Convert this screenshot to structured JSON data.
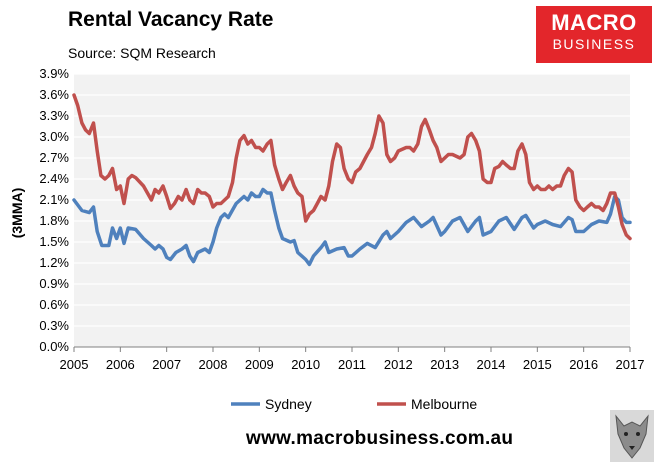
{
  "header": {
    "title": "Rental Vacancy Rate",
    "subtitle": "Source: SQM Research"
  },
  "logo": {
    "line1": "MACRO",
    "line2": "BUSINESS"
  },
  "footer": {
    "website": "www.macrobusiness.com.au"
  },
  "colors": {
    "plot_bg": "#f2f2f2",
    "sydney": "#4f81bd",
    "melbourne": "#c0504d",
    "logo_bg": "#e3262b"
  },
  "chart_data": {
    "type": "line",
    "title": "Rental Vacancy Rate",
    "subtitle": "Source: SQM Research",
    "ylabel": "(3MMA)",
    "ylim": [
      0,
      3.9
    ],
    "y_ticks": [
      "0.0%",
      "0.3%",
      "0.6%",
      "0.9%",
      "1.2%",
      "1.5%",
      "1.8%",
      "2.1%",
      "2.4%",
      "2.7%",
      "3.0%",
      "3.3%",
      "3.6%",
      "3.9%"
    ],
    "xlim": [
      2005,
      2017
    ],
    "x_ticks": [
      "2005",
      "2006",
      "2007",
      "2008",
      "2009",
      "2010",
      "2011",
      "2012",
      "2013",
      "2014",
      "2015",
      "2016",
      "2017"
    ],
    "grid": "horizontal",
    "legend": "bottom",
    "series": [
      {
        "name": "Sydney",
        "color": "#4f81bd",
        "points": [
          [
            2005.0,
            2.1
          ],
          [
            2005.17,
            1.95
          ],
          [
            2005.33,
            1.92
          ],
          [
            2005.42,
            2.0
          ],
          [
            2005.5,
            1.65
          ],
          [
            2005.6,
            1.45
          ],
          [
            2005.75,
            1.45
          ],
          [
            2005.83,
            1.7
          ],
          [
            2005.92,
            1.55
          ],
          [
            2006.0,
            1.7
          ],
          [
            2006.08,
            1.48
          ],
          [
            2006.17,
            1.7
          ],
          [
            2006.33,
            1.68
          ],
          [
            2006.5,
            1.55
          ],
          [
            2006.67,
            1.45
          ],
          [
            2006.75,
            1.4
          ],
          [
            2006.83,
            1.45
          ],
          [
            2006.92,
            1.4
          ],
          [
            2007.0,
            1.28
          ],
          [
            2007.08,
            1.25
          ],
          [
            2007.2,
            1.35
          ],
          [
            2007.33,
            1.4
          ],
          [
            2007.42,
            1.45
          ],
          [
            2007.5,
            1.3
          ],
          [
            2007.58,
            1.22
          ],
          [
            2007.67,
            1.35
          ],
          [
            2007.83,
            1.4
          ],
          [
            2007.92,
            1.35
          ],
          [
            2008.0,
            1.5
          ],
          [
            2008.08,
            1.7
          ],
          [
            2008.17,
            1.85
          ],
          [
            2008.25,
            1.9
          ],
          [
            2008.33,
            1.85
          ],
          [
            2008.5,
            2.05
          ],
          [
            2008.67,
            2.15
          ],
          [
            2008.75,
            2.1
          ],
          [
            2008.83,
            2.2
          ],
          [
            2008.92,
            2.15
          ],
          [
            2009.0,
            2.15
          ],
          [
            2009.08,
            2.25
          ],
          [
            2009.17,
            2.2
          ],
          [
            2009.25,
            2.2
          ],
          [
            2009.33,
            1.95
          ],
          [
            2009.42,
            1.7
          ],
          [
            2009.5,
            1.55
          ],
          [
            2009.67,
            1.5
          ],
          [
            2009.75,
            1.52
          ],
          [
            2009.83,
            1.35
          ],
          [
            2010.0,
            1.25
          ],
          [
            2010.08,
            1.18
          ],
          [
            2010.17,
            1.3
          ],
          [
            2010.33,
            1.42
          ],
          [
            2010.42,
            1.5
          ],
          [
            2010.5,
            1.35
          ],
          [
            2010.67,
            1.4
          ],
          [
            2010.83,
            1.42
          ],
          [
            2010.92,
            1.3
          ],
          [
            2011.0,
            1.3
          ],
          [
            2011.17,
            1.4
          ],
          [
            2011.33,
            1.48
          ],
          [
            2011.5,
            1.42
          ],
          [
            2011.67,
            1.6
          ],
          [
            2011.75,
            1.65
          ],
          [
            2011.83,
            1.55
          ],
          [
            2012.0,
            1.65
          ],
          [
            2012.17,
            1.78
          ],
          [
            2012.33,
            1.85
          ],
          [
            2012.5,
            1.72
          ],
          [
            2012.67,
            1.8
          ],
          [
            2012.75,
            1.85
          ],
          [
            2012.92,
            1.6
          ],
          [
            2013.0,
            1.65
          ],
          [
            2013.17,
            1.8
          ],
          [
            2013.33,
            1.85
          ],
          [
            2013.5,
            1.65
          ],
          [
            2013.67,
            1.8
          ],
          [
            2013.75,
            1.85
          ],
          [
            2013.83,
            1.6
          ],
          [
            2014.0,
            1.65
          ],
          [
            2014.17,
            1.8
          ],
          [
            2014.33,
            1.85
          ],
          [
            2014.5,
            1.68
          ],
          [
            2014.67,
            1.85
          ],
          [
            2014.75,
            1.88
          ],
          [
            2014.92,
            1.7
          ],
          [
            2015.0,
            1.75
          ],
          [
            2015.17,
            1.8
          ],
          [
            2015.33,
            1.75
          ],
          [
            2015.5,
            1.72
          ],
          [
            2015.67,
            1.85
          ],
          [
            2015.75,
            1.82
          ],
          [
            2015.83,
            1.65
          ],
          [
            2016.0,
            1.65
          ],
          [
            2016.17,
            1.75
          ],
          [
            2016.33,
            1.8
          ],
          [
            2016.5,
            1.78
          ],
          [
            2016.58,
            1.9
          ],
          [
            2016.67,
            2.15
          ],
          [
            2016.75,
            2.1
          ],
          [
            2016.83,
            1.85
          ],
          [
            2016.92,
            1.78
          ],
          [
            2017.0,
            1.78
          ]
        ]
      },
      {
        "name": "Melbourne",
        "color": "#c0504d",
        "points": [
          [
            2005.0,
            3.6
          ],
          [
            2005.08,
            3.45
          ],
          [
            2005.17,
            3.2
          ],
          [
            2005.25,
            3.1
          ],
          [
            2005.33,
            3.05
          ],
          [
            2005.42,
            3.2
          ],
          [
            2005.5,
            2.8
          ],
          [
            2005.58,
            2.45
          ],
          [
            2005.67,
            2.4
          ],
          [
            2005.75,
            2.45
          ],
          [
            2005.83,
            2.55
          ],
          [
            2005.92,
            2.25
          ],
          [
            2006.0,
            2.3
          ],
          [
            2006.08,
            2.05
          ],
          [
            2006.17,
            2.4
          ],
          [
            2006.25,
            2.45
          ],
          [
            2006.33,
            2.42
          ],
          [
            2006.5,
            2.3
          ],
          [
            2006.67,
            2.1
          ],
          [
            2006.75,
            2.25
          ],
          [
            2006.83,
            2.2
          ],
          [
            2006.92,
            2.3
          ],
          [
            2007.0,
            2.15
          ],
          [
            2007.08,
            1.98
          ],
          [
            2007.17,
            2.05
          ],
          [
            2007.25,
            2.15
          ],
          [
            2007.33,
            2.1
          ],
          [
            2007.42,
            2.25
          ],
          [
            2007.5,
            2.1
          ],
          [
            2007.58,
            2.05
          ],
          [
            2007.67,
            2.25
          ],
          [
            2007.75,
            2.2
          ],
          [
            2007.83,
            2.2
          ],
          [
            2007.92,
            2.15
          ],
          [
            2008.0,
            2.0
          ],
          [
            2008.08,
            2.05
          ],
          [
            2008.17,
            2.05
          ],
          [
            2008.25,
            2.1
          ],
          [
            2008.33,
            2.15
          ],
          [
            2008.42,
            2.35
          ],
          [
            2008.5,
            2.7
          ],
          [
            2008.58,
            2.95
          ],
          [
            2008.67,
            3.02
          ],
          [
            2008.75,
            2.9
          ],
          [
            2008.83,
            2.95
          ],
          [
            2008.92,
            2.85
          ],
          [
            2009.0,
            2.85
          ],
          [
            2009.08,
            2.8
          ],
          [
            2009.17,
            2.9
          ],
          [
            2009.25,
            2.95
          ],
          [
            2009.33,
            2.6
          ],
          [
            2009.42,
            2.4
          ],
          [
            2009.5,
            2.25
          ],
          [
            2009.58,
            2.35
          ],
          [
            2009.67,
            2.45
          ],
          [
            2009.75,
            2.3
          ],
          [
            2009.83,
            2.2
          ],
          [
            2009.92,
            2.15
          ],
          [
            2010.0,
            1.8
          ],
          [
            2010.08,
            1.9
          ],
          [
            2010.17,
            1.95
          ],
          [
            2010.25,
            2.05
          ],
          [
            2010.33,
            2.15
          ],
          [
            2010.42,
            2.1
          ],
          [
            2010.5,
            2.3
          ],
          [
            2010.58,
            2.65
          ],
          [
            2010.67,
            2.9
          ],
          [
            2010.75,
            2.85
          ],
          [
            2010.83,
            2.55
          ],
          [
            2010.92,
            2.4
          ],
          [
            2011.0,
            2.35
          ],
          [
            2011.08,
            2.5
          ],
          [
            2011.17,
            2.55
          ],
          [
            2011.25,
            2.65
          ],
          [
            2011.33,
            2.75
          ],
          [
            2011.42,
            2.85
          ],
          [
            2011.5,
            3.05
          ],
          [
            2011.58,
            3.3
          ],
          [
            2011.67,
            3.2
          ],
          [
            2011.75,
            2.75
          ],
          [
            2011.83,
            2.65
          ],
          [
            2011.92,
            2.7
          ],
          [
            2012.0,
            2.8
          ],
          [
            2012.17,
            2.85
          ],
          [
            2012.25,
            2.85
          ],
          [
            2012.33,
            2.8
          ],
          [
            2012.42,
            2.9
          ],
          [
            2012.5,
            3.15
          ],
          [
            2012.58,
            3.25
          ],
          [
            2012.67,
            3.1
          ],
          [
            2012.75,
            2.95
          ],
          [
            2012.83,
            2.85
          ],
          [
            2012.92,
            2.65
          ],
          [
            2013.0,
            2.7
          ],
          [
            2013.08,
            2.75
          ],
          [
            2013.17,
            2.75
          ],
          [
            2013.33,
            2.7
          ],
          [
            2013.42,
            2.75
          ],
          [
            2013.5,
            3.0
          ],
          [
            2013.58,
            3.05
          ],
          [
            2013.67,
            2.95
          ],
          [
            2013.75,
            2.8
          ],
          [
            2013.83,
            2.4
          ],
          [
            2013.92,
            2.35
          ],
          [
            2014.0,
            2.35
          ],
          [
            2014.08,
            2.55
          ],
          [
            2014.17,
            2.58
          ],
          [
            2014.25,
            2.65
          ],
          [
            2014.33,
            2.6
          ],
          [
            2014.42,
            2.55
          ],
          [
            2014.5,
            2.55
          ],
          [
            2014.58,
            2.8
          ],
          [
            2014.67,
            2.9
          ],
          [
            2014.75,
            2.75
          ],
          [
            2014.83,
            2.35
          ],
          [
            2014.92,
            2.25
          ],
          [
            2015.0,
            2.3
          ],
          [
            2015.08,
            2.25
          ],
          [
            2015.17,
            2.25
          ],
          [
            2015.25,
            2.3
          ],
          [
            2015.33,
            2.25
          ],
          [
            2015.42,
            2.3
          ],
          [
            2015.5,
            2.3
          ],
          [
            2015.58,
            2.45
          ],
          [
            2015.67,
            2.55
          ],
          [
            2015.75,
            2.5
          ],
          [
            2015.83,
            2.1
          ],
          [
            2015.92,
            2.0
          ],
          [
            2016.0,
            1.95
          ],
          [
            2016.08,
            2.0
          ],
          [
            2016.17,
            2.05
          ],
          [
            2016.25,
            2.0
          ],
          [
            2016.33,
            2.0
          ],
          [
            2016.42,
            1.95
          ],
          [
            2016.5,
            2.05
          ],
          [
            2016.58,
            2.2
          ],
          [
            2016.67,
            2.2
          ],
          [
            2016.75,
            2.0
          ],
          [
            2016.83,
            1.75
          ],
          [
            2016.92,
            1.6
          ],
          [
            2017.0,
            1.55
          ]
        ]
      }
    ]
  }
}
